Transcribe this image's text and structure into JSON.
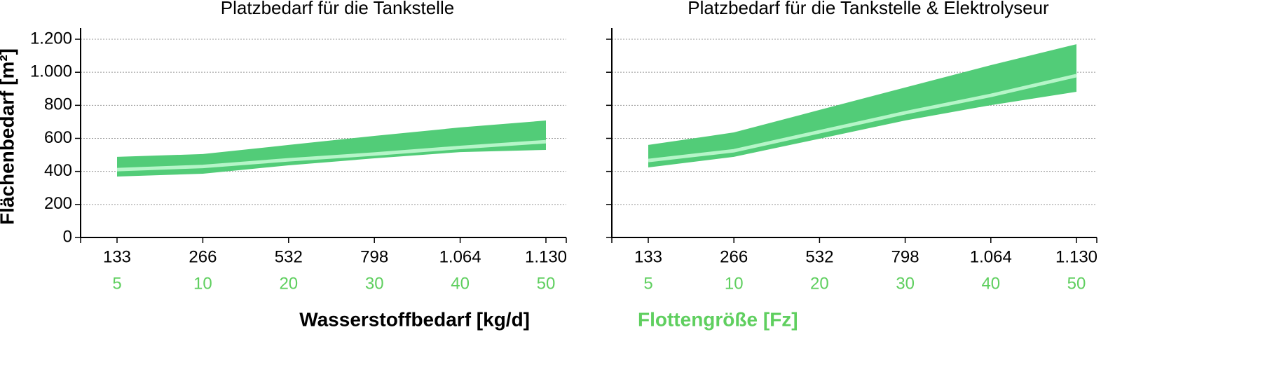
{
  "chart_data": [
    {
      "type": "band",
      "title": "Platzbedarf für die Tankstelle",
      "y_label": "Flächenbedarf [m²]",
      "x_label": "Wasserstoffbedarf [kg/d]",
      "x_label_color": "#000000",
      "categories": [
        "133",
        "266",
        "532",
        "798",
        "1.064",
        "1.130"
      ],
      "categories2": [
        "5",
        "10",
        "20",
        "30",
        "40",
        "50"
      ],
      "categories2_color": "#5fcf5f",
      "band": {
        "color": "#52cc78",
        "low": [
          369,
          386,
          437,
          479,
          517,
          530
        ],
        "high": [
          488,
          505,
          560,
          615,
          666,
          708
        ]
      },
      "median": {
        "color": "#b5f5c8",
        "values": [
          411,
          430,
          470,
          505,
          545,
          580
        ]
      },
      "ylim": [
        0,
        1200
      ],
      "yticks": [
        0,
        200,
        400,
        600,
        800,
        {
          "value": 1000,
          "label": "1.000"
        },
        {
          "value": 1200,
          "label": "1.200"
        }
      ],
      "ytick_labels": true,
      "grid": true
    },
    {
      "type": "band",
      "title": "Platzbedarf für die Tankstelle & Elektrolyseur",
      "x_label": "Flottengröße [Fz]",
      "x_label_color": "#5fcf5f",
      "categories": [
        "133",
        "266",
        "532",
        "798",
        "1.064",
        "1.130"
      ],
      "categories2": [
        "5",
        "10",
        "20",
        "30",
        "40",
        "50"
      ],
      "categories2_color": "#5fcf5f",
      "band": {
        "color": "#52cc78",
        "low": [
          424,
          488,
          598,
          708,
          801,
          882
        ],
        "high": [
          560,
          636,
          772,
          908,
          1043,
          1170
        ]
      },
      "median": {
        "color": "#b5f5c8",
        "values": [
          466,
          525,
          640,
          755,
          860,
          980
        ]
      },
      "ylim": [
        0,
        1200
      ],
      "yticks": [
        0,
        200,
        400,
        600,
        800,
        1000,
        1200
      ],
      "ytick_labels": false,
      "grid": true
    }
  ]
}
